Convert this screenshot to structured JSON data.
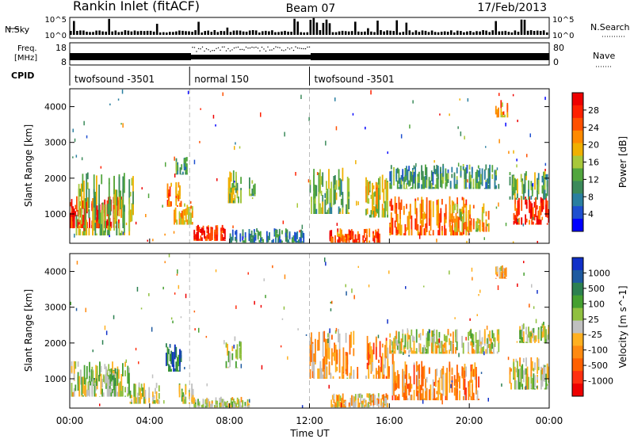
{
  "header": {
    "station": "Rankin Inlet (fitACF)",
    "beam": "Beam 07",
    "date": "17/Feb/2013"
  },
  "strip": {
    "nsky_label": "N.Sky",
    "nsky_ticks": [
      "10^5",
      "10^0"
    ],
    "nsearch_label": "N.Search",
    "freq_label_1": "Freq.",
    "freq_label_2": "[MHz]",
    "freq_ticks": [
      "18",
      "8"
    ],
    "nave_label": "Nave",
    "nave_ticks": [
      "80",
      "0"
    ],
    "cpid_label": "CPID"
  },
  "cpid_segments": [
    {
      "label": "twofsound -3501",
      "start_hour": 0,
      "end_hour": 6
    },
    {
      "label": "normal 150",
      "start_hour": 6,
      "end_hour": 12
    },
    {
      "label": "twofsound -3501",
      "start_hour": 12,
      "end_hour": 24
    }
  ],
  "x_axis": {
    "label": "Time UT",
    "ticks": [
      "00:00",
      "04:00",
      "08:00",
      "12:00",
      "16:00",
      "20:00",
      "00:00"
    ],
    "range_hours": [
      0,
      24
    ]
  },
  "y_axis": {
    "label": "Slant Range [km]",
    "ticks": [
      "1000",
      "2000",
      "3000",
      "4000"
    ],
    "range_km": [
      180,
      4500
    ]
  },
  "colors": {
    "power": [
      "#0000ff",
      "#1e4fd0",
      "#2a7fa0",
      "#3b8a5a",
      "#52a63e",
      "#a8c83a",
      "#f0b000",
      "#ff8a00",
      "#ff5000",
      "#ff2000",
      "#ee0000"
    ],
    "velocity": [
      "#1030c8",
      "#1e5aa0",
      "#2c8050",
      "#45a030",
      "#90c040",
      "#c0c0c0",
      "#ffb020",
      "#ff8a10",
      "#ff6000",
      "#ff3010",
      "#ee0000"
    ]
  },
  "chart_data": [
    {
      "type": "heatmap",
      "name": "power",
      "colorbar_label": "Power [dB]",
      "colorbar_ticks": [
        "4",
        "8",
        "12",
        "16",
        "20",
        "24",
        "28"
      ],
      "value_range": [
        0,
        30
      ],
      "regions": [
        {
          "t0": 0.0,
          "t1": 2.8,
          "r0": 600,
          "r1": 1500,
          "v": 26
        },
        {
          "t0": 0.3,
          "t1": 3.2,
          "r0": 400,
          "r1": 2200,
          "v": 14
        },
        {
          "t0": 4.8,
          "t1": 5.6,
          "r0": 1200,
          "r1": 1900,
          "v": 22
        },
        {
          "t0": 5.3,
          "t1": 5.9,
          "r0": 2100,
          "r1": 2600,
          "v": 10
        },
        {
          "t0": 5.2,
          "t1": 6.3,
          "r0": 700,
          "r1": 1300,
          "v": 18
        },
        {
          "t0": 6.2,
          "t1": 7.8,
          "r0": 250,
          "r1": 700,
          "v": 26
        },
        {
          "t0": 7.8,
          "t1": 8.6,
          "r0": 1300,
          "r1": 2300,
          "v": 14
        },
        {
          "t0": 8.9,
          "t1": 9.3,
          "r0": 1500,
          "r1": 2100,
          "v": 12
        },
        {
          "t0": 8.0,
          "t1": 11.8,
          "r0": 200,
          "r1": 600,
          "v": 8
        },
        {
          "t0": 12.0,
          "t1": 14.0,
          "r0": 1000,
          "r1": 2300,
          "v": 12
        },
        {
          "t0": 13.0,
          "t1": 15.6,
          "r0": 200,
          "r1": 600,
          "v": 24
        },
        {
          "t0": 14.8,
          "t1": 16.0,
          "r0": 900,
          "r1": 2100,
          "v": 16
        },
        {
          "t0": 16.0,
          "t1": 21.5,
          "r0": 1700,
          "r1": 2400,
          "v": 10
        },
        {
          "t0": 16.0,
          "t1": 20.0,
          "r0": 400,
          "r1": 1500,
          "v": 22
        },
        {
          "t0": 19.0,
          "t1": 21.0,
          "r0": 500,
          "r1": 1300,
          "v": 18
        },
        {
          "t0": 21.3,
          "t1": 22.0,
          "r0": 3700,
          "r1": 4200,
          "v": 20
        },
        {
          "t0": 22.2,
          "t1": 24.0,
          "r0": 700,
          "r1": 1500,
          "v": 26
        },
        {
          "t0": 22.0,
          "t1": 24.0,
          "r0": 1400,
          "r1": 2200,
          "v": 12
        }
      ]
    },
    {
      "type": "heatmap",
      "name": "velocity",
      "colorbar_label": "Velocity [m s^-1]",
      "colorbar_ticks": [
        "1000",
        "500",
        "100",
        "25",
        "-25",
        "-100",
        "-500",
        "-1000"
      ],
      "value_range": [
        -1200,
        1200
      ],
      "regions": [
        {
          "t0": 0.0,
          "t1": 3.0,
          "r0": 500,
          "r1": 1500,
          "v": 80
        },
        {
          "t0": 1.0,
          "t1": 2.5,
          "r0": 800,
          "r1": 1300,
          "v": 300
        },
        {
          "t0": 3.0,
          "t1": 4.5,
          "r0": 300,
          "r1": 900,
          "v": 60
        },
        {
          "t0": 4.8,
          "t1": 5.6,
          "r0": 1200,
          "r1": 2000,
          "v": 700
        },
        {
          "t0": 5.4,
          "t1": 6.2,
          "r0": 300,
          "r1": 900,
          "v": 80
        },
        {
          "t0": 7.8,
          "t1": 8.6,
          "r0": 1300,
          "r1": 2200,
          "v": 60
        },
        {
          "t0": 6.2,
          "t1": 9.0,
          "r0": 200,
          "r1": 500,
          "v": 40
        },
        {
          "t0": 12.0,
          "t1": 14.5,
          "r0": 1000,
          "r1": 2400,
          "v": -300
        },
        {
          "t0": 13.0,
          "t1": 16.0,
          "r0": 200,
          "r1": 600,
          "v": -200
        },
        {
          "t0": 14.8,
          "t1": 16.2,
          "r0": 1000,
          "r1": 2200,
          "v": -400
        },
        {
          "t0": 16.0,
          "t1": 21.5,
          "r0": 1700,
          "r1": 2400,
          "v": 0
        },
        {
          "t0": 16.0,
          "t1": 20.5,
          "r0": 400,
          "r1": 1500,
          "v": -400
        },
        {
          "t0": 21.3,
          "t1": 22.0,
          "r0": 3800,
          "r1": 4200,
          "v": -300
        },
        {
          "t0": 22.0,
          "t1": 24.0,
          "r0": 700,
          "r1": 1600,
          "v": 60
        },
        {
          "t0": 22.5,
          "t1": 24.0,
          "r0": 2000,
          "r1": 2600,
          "v": 150
        }
      ]
    }
  ]
}
